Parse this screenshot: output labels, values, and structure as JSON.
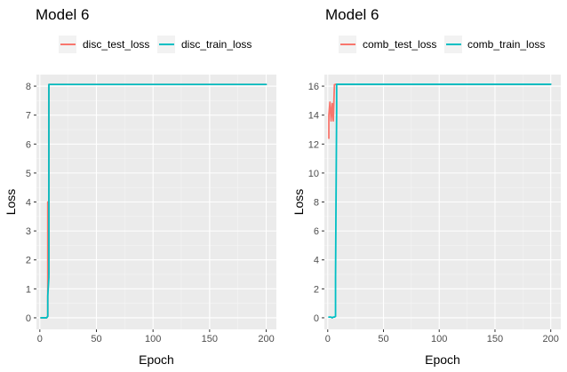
{
  "chart_data": [
    {
      "type": "line",
      "title": "Model 6",
      "xlabel": "Epoch",
      "ylabel": "Loss",
      "xlim": [
        -3,
        209
      ],
      "ylim": [
        -0.4,
        8.4
      ],
      "xticks": [
        0,
        50,
        100,
        150,
        200
      ],
      "yticks": [
        0,
        1,
        2,
        3,
        4,
        5,
        6,
        7,
        8
      ],
      "grid": true,
      "legend_position": "top",
      "series": [
        {
          "name": "disc_test_loss",
          "color": "#F8766D",
          "x": [
            1,
            2,
            3,
            4,
            5,
            6,
            7,
            7,
            8,
            8,
            9,
            10,
            20,
            50,
            100,
            150,
            200
          ],
          "y": [
            0.0,
            0.0,
            0.0,
            0.0,
            0.0,
            0.0,
            0.05,
            4.0,
            1.5,
            8.06,
            8.06,
            8.06,
            8.06,
            8.06,
            8.06,
            8.06,
            8.06
          ]
        },
        {
          "name": "disc_train_loss",
          "color": "#00BFC4",
          "x": [
            1,
            2,
            3,
            4,
            5,
            6,
            7,
            7,
            8,
            8,
            9,
            10,
            20,
            50,
            100,
            150,
            200
          ],
          "y": [
            0.0,
            0.0,
            0.0,
            0.0,
            0.0,
            0.0,
            0.05,
            0.75,
            1.4,
            8.06,
            8.06,
            8.06,
            8.06,
            8.06,
            8.06,
            8.06,
            8.06
          ]
        }
      ]
    },
    {
      "type": "line",
      "title": "Model 6",
      "xlabel": "Epoch",
      "ylabel": "Loss",
      "xlim": [
        -3,
        209
      ],
      "ylim": [
        -0.8,
        16.8
      ],
      "xticks": [
        0,
        50,
        100,
        150,
        200
      ],
      "yticks": [
        0,
        2,
        4,
        6,
        8,
        10,
        12,
        14,
        16
      ],
      "grid": true,
      "legend_position": "top",
      "series": [
        {
          "name": "comb_test_loss",
          "color": "#F8766D",
          "x": [
            1,
            1,
            2,
            3,
            4,
            5,
            6,
            7,
            8,
            9,
            10,
            20,
            50,
            100,
            150,
            200
          ],
          "y": [
            12.4,
            14.0,
            14.9,
            13.6,
            14.8,
            13.6,
            16.1,
            16.13,
            16.13,
            16.13,
            16.13,
            16.13,
            16.13,
            16.13,
            16.13,
            16.13
          ]
        },
        {
          "name": "comb_train_loss",
          "color": "#00BFC4",
          "x": [
            1,
            2,
            3,
            4,
            5,
            6,
            7,
            7,
            8,
            8,
            9,
            10,
            20,
            50,
            100,
            150,
            200
          ],
          "y": [
            0.05,
            0.05,
            0.05,
            0.0,
            0.05,
            0.05,
            0.1,
            2.8,
            14.5,
            16.13,
            16.13,
            16.13,
            16.13,
            16.13,
            16.13,
            16.13,
            16.13
          ]
        }
      ]
    }
  ]
}
